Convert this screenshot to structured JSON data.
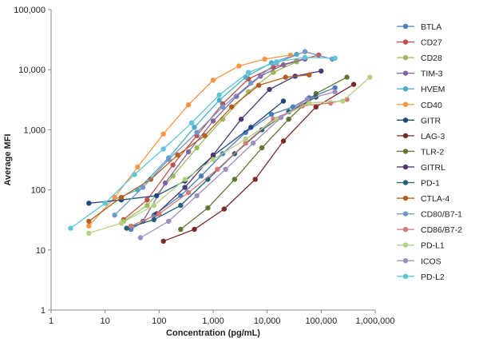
{
  "chart_data": {
    "type": "line",
    "xlabel": "Concentration (pg/mL)",
    "ylabel": "Average MFI",
    "x_scale": "log",
    "y_scale": "log",
    "xlim": [
      1,
      1000000
    ],
    "ylim": [
      1,
      100000
    ],
    "x_ticks": [
      1,
      10,
      100,
      1000,
      10000,
      100000,
      1000000
    ],
    "x_tick_labels": [
      "1",
      "10",
      "100",
      "1,000",
      "10,000",
      "100,000",
      "1,000,000"
    ],
    "y_ticks": [
      1,
      10,
      100,
      1000,
      10000,
      100000
    ],
    "y_tick_labels": [
      "1",
      "10",
      "100",
      "1,000",
      "10,000",
      "100,000"
    ],
    "grid": false,
    "legend_position": "right",
    "series": [
      {
        "name": "BTLA",
        "color": "#4a7ebb",
        "x": [
          30,
          80,
          250,
          600,
          1500,
          4000,
          12000,
          30000,
          60000,
          180000
        ],
        "y": [
          22,
          38,
          80,
          170,
          400,
          900,
          1800,
          2400,
          3400,
          5000
        ]
      },
      {
        "name": "CD27",
        "color": "#c0504d",
        "x": [
          22,
          60,
          180,
          500,
          1500,
          4500,
          13000,
          35000,
          90000
        ],
        "y": [
          32,
          68,
          260,
          800,
          2700,
          7000,
          11000,
          14000,
          17500
        ]
      },
      {
        "name": "CD28",
        "color": "#9bbb59",
        "x": [
          22,
          60,
          180,
          500,
          1500,
          4500,
          13000,
          35000
        ],
        "y": [
          30,
          55,
          170,
          500,
          1500,
          4300,
          9000,
          13500
        ]
      },
      {
        "name": "TIM-3",
        "color": "#8064a2",
        "x": [
          50,
          130,
          350,
          1000,
          2700,
          7500,
          20000,
          50000
        ],
        "y": [
          30,
          130,
          430,
          1400,
          3600,
          7800,
          12000,
          15000
        ]
      },
      {
        "name": "HVEM",
        "color": "#4bacc6",
        "x": [
          10,
          40,
          150,
          450,
          1300,
          4000,
          12000,
          35000
        ],
        "y": [
          60,
          100,
          340,
          1100,
          3100,
          7500,
          13000,
          18000
        ]
      },
      {
        "name": "CD40",
        "color": "#f79646",
        "x": [
          5,
          15,
          40,
          120,
          350,
          1000,
          3000,
          9000,
          27000
        ],
        "y": [
          25,
          75,
          240,
          850,
          2600,
          6700,
          11500,
          15000,
          17500
        ]
      },
      {
        "name": "GITR",
        "color": "#1f497d",
        "x": [
          5,
          20,
          90,
          300,
          1000,
          5000,
          20000
        ],
        "y": [
          60,
          68,
          80,
          140,
          370,
          1100,
          3000
        ]
      },
      {
        "name": "LAG-3",
        "color": "#7b2a2a",
        "x": [
          120,
          450,
          1600,
          6000,
          20000,
          80000,
          400000
        ],
        "y": [
          14,
          22,
          48,
          150,
          650,
          2400,
          5700
        ]
      },
      {
        "name": "TLR-2",
        "color": "#5e7532",
        "x": [
          250,
          800,
          2500,
          8000,
          25000,
          80000,
          300000
        ],
        "y": [
          22,
          50,
          150,
          500,
          1500,
          4000,
          7500
        ]
      },
      {
        "name": "GITRL",
        "color": "#4b3a73",
        "x": [
          90,
          300,
          1000,
          3300,
          11000,
          33000,
          100000
        ],
        "y": [
          40,
          110,
          380,
          1500,
          4700,
          7800,
          9500
        ]
      },
      {
        "name": "PD-1",
        "color": "#24607a",
        "x": [
          25,
          80,
          250,
          800,
          2500,
          8000,
          25000,
          80000
        ],
        "y": [
          23,
          32,
          55,
          150,
          400,
          1000,
          2000,
          3500
        ]
      },
      {
        "name": "CTLA-4",
        "color": "#b45f1e",
        "x": [
          5,
          20,
          70,
          220,
          700,
          2200,
          7000,
          22000,
          60000
        ],
        "y": [
          30,
          75,
          150,
          380,
          800,
          2400,
          5500,
          7500,
          8200
        ]
      },
      {
        "name": "CD80/B7-1",
        "color": "#7396c8",
        "x": [
          15,
          50,
          150,
          500,
          1500,
          5000,
          15000,
          50000,
          160000
        ],
        "y": [
          38,
          110,
          320,
          900,
          2400,
          6000,
          13000,
          20000,
          15000
        ]
      },
      {
        "name": "CD86/B7-2",
        "color": "#d27a78",
        "x": [
          30,
          100,
          350,
          1200,
          4000,
          13000,
          45000,
          150000,
          300000
        ],
        "y": [
          25,
          40,
          90,
          220,
          600,
          1500,
          2500,
          2800,
          3200
        ]
      },
      {
        "name": "PD-L1",
        "color": "#b3d17f",
        "x": [
          5,
          20,
          80,
          300,
          1000,
          4000,
          15000,
          60000,
          250000,
          800000
        ],
        "y": [
          19,
          28,
          55,
          150,
          320,
          700,
          1500,
          2800,
          3000,
          7500
        ]
      },
      {
        "name": "ICOS",
        "color": "#9f8dc0",
        "x": [
          45,
          150,
          500,
          1700,
          5500,
          18000,
          55000,
          180000
        ],
        "y": [
          16,
          30,
          80,
          220,
          600,
          1600,
          3200,
          4300
        ]
      },
      {
        "name": "PD-L2",
        "color": "#5fc4d8",
        "x": [
          2.3,
          10,
          35,
          120,
          400,
          1300,
          4500,
          15000,
          50000,
          180000
        ],
        "y": [
          23,
          60,
          180,
          480,
          1300,
          3800,
          9000,
          13500,
          16000,
          15500
        ]
      }
    ]
  }
}
